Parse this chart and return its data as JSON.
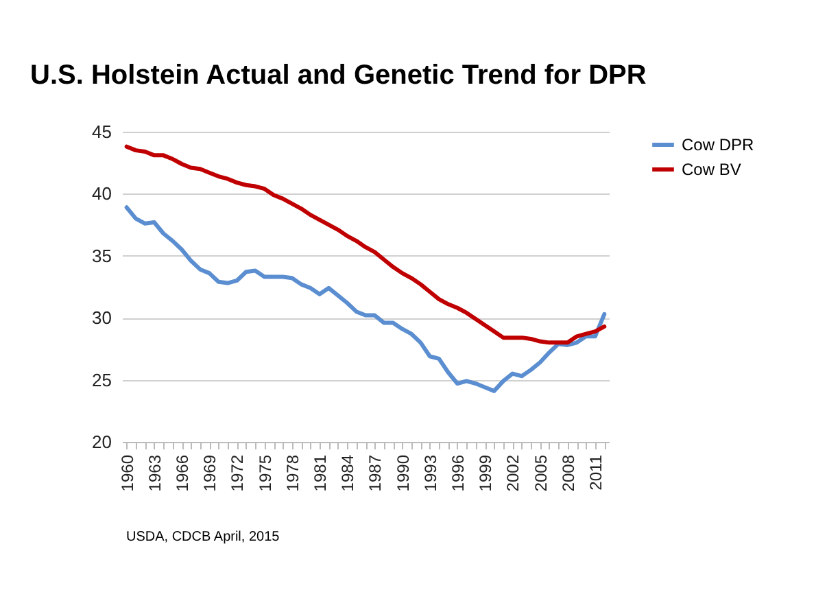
{
  "chart_data": {
    "type": "line",
    "title": "U.S. Holstein Actual and Genetic Trend for DPR",
    "x": [
      1960,
      1961,
      1962,
      1963,
      1964,
      1965,
      1966,
      1967,
      1968,
      1969,
      1970,
      1971,
      1972,
      1973,
      1974,
      1975,
      1976,
      1977,
      1978,
      1979,
      1980,
      1981,
      1982,
      1983,
      1984,
      1985,
      1986,
      1987,
      1988,
      1989,
      1990,
      1991,
      1992,
      1993,
      1994,
      1995,
      1996,
      1997,
      1998,
      1999,
      2000,
      2001,
      2002,
      2003,
      2004,
      2005,
      2006,
      2007,
      2008,
      2009,
      2010,
      2011,
      2012
    ],
    "series": [
      {
        "name": "Cow DPR",
        "color": "#5b8ed0",
        "values": [
          38.9,
          38.0,
          37.6,
          37.7,
          36.8,
          36.2,
          35.5,
          34.6,
          33.9,
          33.6,
          32.9,
          32.8,
          33.0,
          33.7,
          33.8,
          33.3,
          33.3,
          33.3,
          33.2,
          32.7,
          32.4,
          31.9,
          32.4,
          31.8,
          31.2,
          30.5,
          30.2,
          30.2,
          29.6,
          29.6,
          29.1,
          28.7,
          28.0,
          26.9,
          26.7,
          25.6,
          24.7,
          24.9,
          24.7,
          24.4,
          24.1,
          24.9,
          25.5,
          25.3,
          25.8,
          26.4,
          27.2,
          27.9,
          27.8,
          28.0,
          28.5,
          28.5,
          30.3
        ]
      },
      {
        "name": "Cow BV",
        "color": "#c00000",
        "values": [
          43.8,
          43.5,
          43.4,
          43.1,
          43.1,
          42.8,
          42.4,
          42.1,
          42.0,
          41.7,
          41.4,
          41.2,
          40.9,
          40.7,
          40.6,
          40.4,
          39.9,
          39.6,
          39.2,
          38.8,
          38.3,
          37.9,
          37.5,
          37.1,
          36.6,
          36.2,
          35.7,
          35.3,
          34.7,
          34.1,
          33.6,
          33.2,
          32.7,
          32.1,
          31.5,
          31.1,
          30.8,
          30.4,
          29.9,
          29.4,
          28.9,
          28.4,
          28.4,
          28.4,
          28.3,
          28.1,
          28.0,
          28.0,
          28.0,
          28.5,
          28.7,
          28.9,
          29.3
        ]
      }
    ],
    "xlim": [
      1959.5,
      2012.5
    ],
    "xticks": [
      1960,
      {
        "value": 1961,
        "label": null
      },
      {
        "value": 1962,
        "label": null
      },
      1963,
      {
        "value": 1964,
        "label": null
      },
      {
        "value": 1965,
        "label": null
      },
      1966,
      {
        "value": 1967,
        "label": null
      },
      {
        "value": 1968,
        "label": null
      },
      1969,
      {
        "value": 1970,
        "label": null
      },
      {
        "value": 1971,
        "label": null
      },
      1972,
      {
        "value": 1973,
        "label": null
      },
      {
        "value": 1974,
        "label": null
      },
      1975,
      {
        "value": 1976,
        "label": null
      },
      {
        "value": 1977,
        "label": null
      },
      1978,
      {
        "value": 1979,
        "label": null
      },
      {
        "value": 1980,
        "label": null
      },
      1981,
      {
        "value": 1982,
        "label": null
      },
      {
        "value": 1983,
        "label": null
      },
      1984,
      {
        "value": 1985,
        "label": null
      },
      {
        "value": 1986,
        "label": null
      },
      1987,
      {
        "value": 1988,
        "label": null
      },
      {
        "value": 1989,
        "label": null
      },
      1990,
      {
        "value": 1991,
        "label": null
      },
      {
        "value": 1992,
        "label": null
      },
      1993,
      {
        "value": 1994,
        "label": null
      },
      {
        "value": 1995,
        "label": null
      },
      1996,
      {
        "value": 1997,
        "label": null
      },
      {
        "value": 1998,
        "label": null
      },
      1999,
      {
        "value": 2000,
        "label": null
      },
      {
        "value": 2001,
        "label": null
      },
      2002,
      {
        "value": 2003,
        "label": null
      },
      {
        "value": 2004,
        "label": null
      },
      2005,
      {
        "value": 2006,
        "label": null
      },
      {
        "value": 2007,
        "label": null
      },
      2008,
      {
        "value": 2009,
        "label": null
      },
      {
        "value": 2010,
        "label": null
      },
      2011,
      {
        "value": 2012,
        "label": null
      }
    ],
    "ylim": [
      20,
      45
    ],
    "yticks": [
      20,
      25,
      30,
      35,
      40,
      45
    ],
    "grid": "y",
    "legend": "right",
    "marker": "none",
    "line_style": "solid",
    "annotations": [
      "USDA, CDCB April, 2015"
    ]
  }
}
